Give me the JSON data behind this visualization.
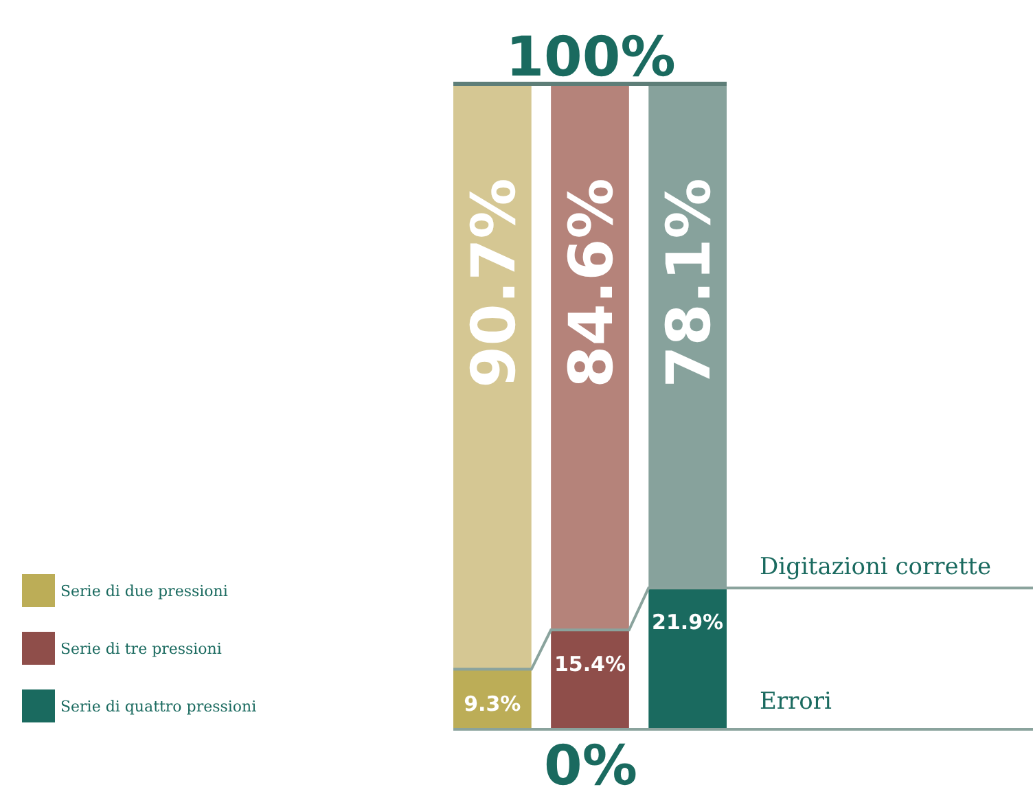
{
  "chart_data": {
    "type": "bar",
    "stacked": true,
    "categories": [
      null,
      null,
      null
    ],
    "series": [
      {
        "name": "Serie di due pressioni",
        "color": "#bcad57",
        "values": [
          9.3,
          null,
          null
        ],
        "value_labels": [
          "9.3%",
          null,
          null
        ]
      },
      {
        "name": "Serie di tre pressioni",
        "color": "#8f4e4a",
        "values": [
          null,
          15.4,
          null
        ],
        "value_labels": [
          null,
          "15.4%",
          null
        ]
      },
      {
        "name": "Serie di quattro pressioni",
        "color": "#1a6a5f",
        "values": [
          null,
          null,
          21.9
        ],
        "value_labels": [
          null,
          null,
          "21.9%"
        ]
      },
      {
        "color": "#d5c793",
        "values": [
          90.7,
          null,
          null
        ],
        "value_labels": [
          "90.7%",
          null,
          null
        ]
      },
      {
        "color": "#b5837a",
        "values": [
          null,
          84.6,
          null
        ],
        "value_labels": [
          null,
          "84.6%",
          null
        ]
      },
      {
        "color": "#87a29c",
        "values": [
          null,
          null,
          78.1
        ],
        "value_labels": [
          null,
          null,
          "78.1%"
        ]
      }
    ],
    "ylim": [
      0,
      100
    ],
    "legend": "left",
    "ref_lines": [
      {
        "axis": "y",
        "value": 0,
        "label": "0%",
        "color": "#8aa39d"
      },
      {
        "axis": "y",
        "value": 100,
        "label": "100%",
        "color": "#5e7e78"
      }
    ],
    "annotations": [
      "Digitazioni corrette",
      "Errori"
    ]
  }
}
